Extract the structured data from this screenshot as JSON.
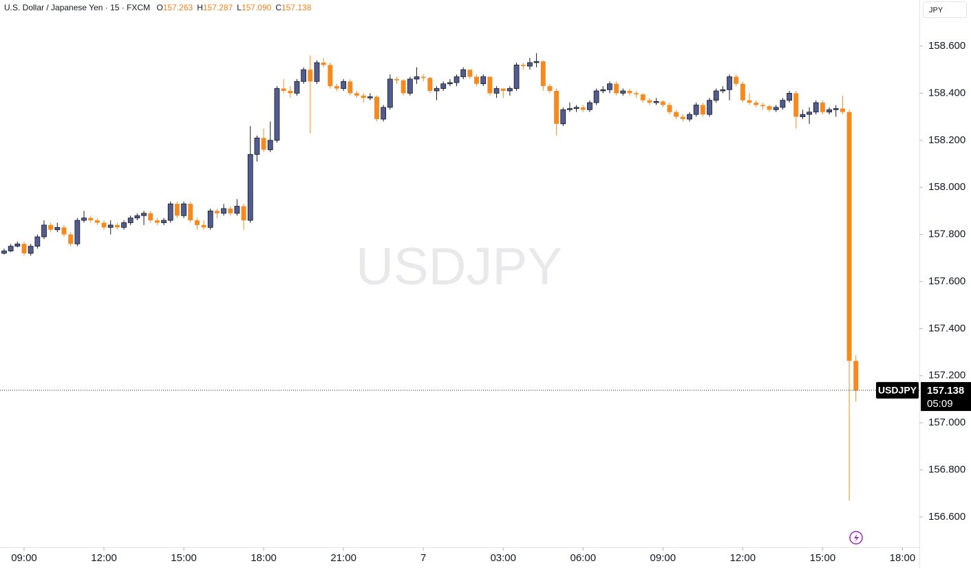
{
  "chart_data": {
    "type": "candlestick",
    "title": "U.S. Dollar / Japanese Yen · 15 · FXCM",
    "ohlc_legend": [
      {
        "key": "O",
        "value": "157.263"
      },
      {
        "key": "H",
        "value": "157.287"
      },
      {
        "key": "L",
        "value": "157.090"
      },
      {
        "key": "C",
        "value": "157.138"
      }
    ],
    "currency": "JPY",
    "watermark": "USDJPY",
    "symbol_tag": "USDJPY",
    "last_price": {
      "value": 157.138,
      "label": "157.138"
    },
    "countdown": "05:09",
    "up_color": "#525c8e",
    "down_color": "#f68a1e",
    "xlim": [
      -0.62,
      137.54
    ],
    "ylim": [
      156.471,
      158.796
    ],
    "xticks": [
      {
        "value": 3,
        "label": "09:00"
      },
      {
        "value": 15,
        "label": "12:00"
      },
      {
        "value": 27,
        "label": "15:00"
      },
      {
        "value": 39,
        "label": "18:00"
      },
      {
        "value": 51,
        "label": "21:00"
      },
      {
        "value": 63,
        "label": "7"
      },
      {
        "value": 75,
        "label": "03:00"
      },
      {
        "value": 87,
        "label": "06:00"
      },
      {
        "value": 99,
        "label": "09:00"
      },
      {
        "value": 111,
        "label": "12:00"
      },
      {
        "value": 123,
        "label": "15:00"
      },
      {
        "value": 135,
        "label": "18:00"
      }
    ],
    "yticks": [
      {
        "value": 156.6,
        "label": "156.600"
      },
      {
        "value": 156.8,
        "label": "156.800"
      },
      {
        "value": 157,
        "label": "157.000"
      },
      {
        "value": 157.2,
        "label": "157.200"
      },
      {
        "value": 157.4,
        "label": "157.400"
      },
      {
        "value": 157.6,
        "label": "157.600"
      },
      {
        "value": 157.8,
        "label": "157.800"
      },
      {
        "value": 158,
        "label": "158.000"
      },
      {
        "value": 158.2,
        "label": "158.200"
      },
      {
        "value": 158.4,
        "label": "158.400"
      },
      {
        "value": 158.6,
        "label": "158.600"
      }
    ],
    "open": [
      157.72,
      157.73,
      157.75,
      157.76,
      157.72,
      157.75,
      157.79,
      157.84,
      157.82,
      157.83,
      157.8,
      157.76,
      157.86,
      157.87,
      157.86,
      157.85,
      157.83,
      157.84,
      157.83,
      157.85,
      157.87,
      157.88,
      157.89,
      157.86,
      157.85,
      157.86,
      157.93,
      157.88,
      157.93,
      157.86,
      157.84,
      157.83,
      157.9,
      157.89,
      157.91,
      157.89,
      157.92,
      157.86,
      158.14,
      158.21,
      158.16,
      158.2,
      158.42,
      158.41,
      158.4,
      158.45,
      158.5,
      158.45,
      158.53,
      158.52,
      158.43,
      158.42,
      158.45,
      158.4,
      158.39,
      158.38,
      158.385,
      158.29,
      158.34,
      158.46,
      158.455,
      158.4,
      158.46,
      158.47,
      158.465,
      158.41,
      158.42,
      158.44,
      158.445,
      158.47,
      158.5,
      158.47,
      158.44,
      158.47,
      158.4,
      158.42,
      158.41,
      158.42,
      158.52,
      158.515,
      158.53,
      158.535,
      158.43,
      158.41,
      158.27,
      158.33,
      158.335,
      158.34,
      158.33,
      158.36,
      158.41,
      158.415,
      158.44,
      158.4,
      158.41,
      158.4,
      158.395,
      158.37,
      158.36,
      158.365,
      158.35,
      158.32,
      158.3,
      158.29,
      158.31,
      158.35,
      158.31,
      158.37,
      158.41,
      158.415,
      158.47,
      158.44,
      158.37,
      158.36,
      158.35,
      158.345,
      158.33,
      158.34,
      158.37,
      158.4,
      158.3,
      158.31,
      158.32,
      158.36,
      158.32,
      158.33,
      158.335,
      158.32,
      157.263
    ],
    "high": [
      157.74,
      157.76,
      157.77,
      157.77,
      157.76,
      157.8,
      157.86,
      157.85,
      157.85,
      157.84,
      157.81,
      157.87,
      157.9,
      157.88,
      157.87,
      157.86,
      157.86,
      157.85,
      157.86,
      157.88,
      157.89,
      157.9,
      157.9,
      157.87,
      157.87,
      157.94,
      157.94,
      157.94,
      157.94,
      157.87,
      157.86,
      157.91,
      157.91,
      157.93,
      157.92,
      157.95,
      157.93,
      158.26,
      158.22,
      158.25,
      158.28,
      158.43,
      158.46,
      158.43,
      158.46,
      158.51,
      158.56,
      158.54,
      158.55,
      158.53,
      158.44,
      158.46,
      158.46,
      158.41,
      158.4,
      158.4,
      158.39,
      158.35,
      158.48,
      158.47,
      158.46,
      158.47,
      158.51,
      158.48,
      158.47,
      158.43,
      158.45,
      158.46,
      158.48,
      158.51,
      158.5,
      158.48,
      158.48,
      158.47,
      158.43,
      158.42,
      158.43,
      158.53,
      158.53,
      158.55,
      158.57,
      158.54,
      158.44,
      158.42,
      158.34,
      158.36,
      158.35,
      158.35,
      158.37,
      158.42,
      158.43,
      158.45,
      158.45,
      158.42,
      158.42,
      158.41,
      158.4,
      158.38,
      158.38,
      158.37,
      158.36,
      158.33,
      158.31,
      158.32,
      158.36,
      158.36,
      158.38,
      158.42,
      158.43,
      158.48,
      158.48,
      158.45,
      158.4,
      158.37,
      158.36,
      158.35,
      158.35,
      158.38,
      158.41,
      158.41,
      158.33,
      158.34,
      158.37,
      158.37,
      158.34,
      158.35,
      158.39,
      158.33,
      157.287
    ],
    "low": [
      157.715,
      157.725,
      157.745,
      157.71,
      157.71,
      157.74,
      157.78,
      157.81,
      157.81,
      157.79,
      157.75,
      157.75,
      157.85,
      157.85,
      157.84,
      157.82,
      157.8,
      157.82,
      157.82,
      157.84,
      157.86,
      157.84,
      157.85,
      157.84,
      157.84,
      157.85,
      157.87,
      157.87,
      157.85,
      157.82,
      157.82,
      157.82,
      157.87,
      157.88,
      157.88,
      157.88,
      157.82,
      157.85,
      158.11,
      158.15,
      158.15,
      158.19,
      158.4,
      158.38,
      158.39,
      158.44,
      158.23,
      158.44,
      158.51,
      158.42,
      158.41,
      158.41,
      158.39,
      158.38,
      158.36,
      158.37,
      158.28,
      158.28,
      158.33,
      158.44,
      158.39,
      158.39,
      158.44,
      158.45,
      158.4,
      158.37,
      158.41,
      158.43,
      158.43,
      158.46,
      158.46,
      158.43,
      158.43,
      158.39,
      158.38,
      158.38,
      158.39,
      158.41,
      158.5,
      158.5,
      158.51,
      158.41,
      158.4,
      158.22,
      158.26,
      158.32,
      158.32,
      158.32,
      158.32,
      158.35,
      158.4,
      158.4,
      158.39,
      158.39,
      158.39,
      158.38,
      158.36,
      158.35,
      158.35,
      158.34,
      158.31,
      158.29,
      158.28,
      158.28,
      158.3,
      158.3,
      158.3,
      158.36,
      158.4,
      158.37,
      158.43,
      158.36,
      158.35,
      158.34,
      158.33,
      158.32,
      158.32,
      158.33,
      158.36,
      158.25,
      158.29,
      158.27,
      158.31,
      158.31,
      158.31,
      158.3,
      158.31,
      156.67,
      157.09
    ],
    "close": [
      157.73,
      157.75,
      157.76,
      157.72,
      157.75,
      157.79,
      157.84,
      157.82,
      157.83,
      157.8,
      157.76,
      157.86,
      157.87,
      157.86,
      157.85,
      157.83,
      157.84,
      157.83,
      157.85,
      157.87,
      157.88,
      157.89,
      157.86,
      157.85,
      157.86,
      157.93,
      157.88,
      157.93,
      157.86,
      157.84,
      157.83,
      157.9,
      157.89,
      157.91,
      157.89,
      157.92,
      157.86,
      158.14,
      158.21,
      158.16,
      158.2,
      158.42,
      158.41,
      158.4,
      158.45,
      158.5,
      158.45,
      158.53,
      158.52,
      158.43,
      158.42,
      158.45,
      158.4,
      158.39,
      158.38,
      158.385,
      158.29,
      158.34,
      158.46,
      158.455,
      158.4,
      158.46,
      158.47,
      158.465,
      158.41,
      158.42,
      158.44,
      158.445,
      158.47,
      158.5,
      158.47,
      158.44,
      158.47,
      158.4,
      158.42,
      158.41,
      158.42,
      158.52,
      158.515,
      158.53,
      158.535,
      158.43,
      158.41,
      158.27,
      158.33,
      158.335,
      158.34,
      158.33,
      158.36,
      158.41,
      158.415,
      158.44,
      158.4,
      158.41,
      158.4,
      158.395,
      158.37,
      158.36,
      158.365,
      158.35,
      158.32,
      158.3,
      158.29,
      158.31,
      158.35,
      158.31,
      158.37,
      158.41,
      158.415,
      158.47,
      158.44,
      158.37,
      158.36,
      158.35,
      158.345,
      158.33,
      158.34,
      158.37,
      158.4,
      158.3,
      158.31,
      158.32,
      158.36,
      158.32,
      158.33,
      158.335,
      158.32,
      157.263,
      157.138
    ]
  }
}
